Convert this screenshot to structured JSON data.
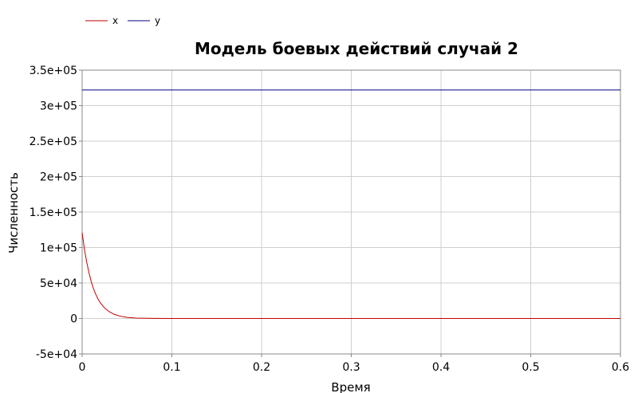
{
  "chart_data": {
    "type": "line",
    "title": "Модель боевых действий случай 2",
    "xlabel": "Время",
    "ylabel": "Численность",
    "xlim": [
      0,
      0.6
    ],
    "ylim": [
      -50000,
      350000
    ],
    "xticks": [
      "0",
      "0.1",
      "0.2",
      "0.3",
      "0.4",
      "0.5",
      "0.6"
    ],
    "yticks": [
      "-5e+04",
      "0",
      "5e+04",
      "1e+05",
      "1.5e+05",
      "2e+05",
      "2.5e+05",
      "3e+05",
      "3.5e+05"
    ],
    "grid": true,
    "legend_position": "top-left",
    "series": [
      {
        "name": "x",
        "color": "#c00000",
        "x": [
          0,
          0.0025,
          0.005,
          0.0075,
          0.01,
          0.0125,
          0.015,
          0.0175,
          0.02,
          0.025,
          0.03,
          0.035,
          0.04,
          0.045,
          0.05,
          0.06,
          0.08,
          0.1,
          0.2,
          0.3,
          0.4,
          0.5,
          0.6
        ],
        "y": [
          121000,
          98000,
          80000,
          65000,
          52500,
          42500,
          34500,
          28000,
          22500,
          14800,
          9700,
          6300,
          4100,
          2600,
          1600,
          600,
          80,
          0,
          0,
          0,
          0,
          0,
          0
        ]
      },
      {
        "name": "y",
        "color": "#000080",
        "x": [
          0,
          0.6
        ],
        "y": [
          322000,
          322000
        ]
      }
    ]
  }
}
